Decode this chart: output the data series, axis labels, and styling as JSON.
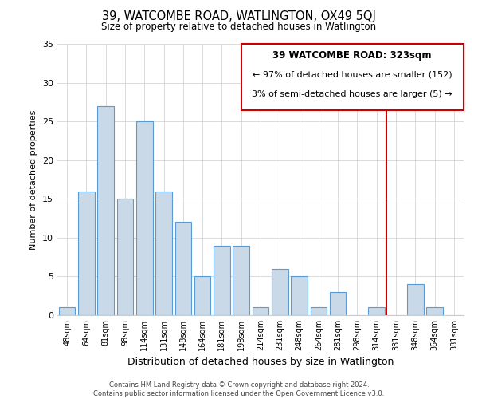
{
  "title": "39, WATCOMBE ROAD, WATLINGTON, OX49 5QJ",
  "subtitle": "Size of property relative to detached houses in Watlington",
  "xlabel": "Distribution of detached houses by size in Watlington",
  "ylabel": "Number of detached properties",
  "bar_labels": [
    "48sqm",
    "64sqm",
    "81sqm",
    "98sqm",
    "114sqm",
    "131sqm",
    "148sqm",
    "164sqm",
    "181sqm",
    "198sqm",
    "214sqm",
    "231sqm",
    "248sqm",
    "264sqm",
    "281sqm",
    "298sqm",
    "314sqm",
    "331sqm",
    "348sqm",
    "364sqm",
    "381sqm"
  ],
  "bar_values": [
    1,
    16,
    27,
    15,
    25,
    16,
    12,
    5,
    9,
    9,
    1,
    6,
    5,
    1,
    3,
    0,
    1,
    0,
    4,
    1,
    0
  ],
  "bar_color": "#c9d9e8",
  "bar_edge_color": "#5b9bd5",
  "ylim": [
    0,
    35
  ],
  "yticks": [
    0,
    5,
    10,
    15,
    20,
    25,
    30,
    35
  ],
  "vline_index": 16,
  "vline_color": "#cc0000",
  "annotation_title": "39 WATCOMBE ROAD: 323sqm",
  "annotation_line1": "← 97% of detached houses are smaller (152)",
  "annotation_line2": "3% of semi-detached houses are larger (5) →",
  "annotation_box_color": "#cc0000",
  "footer_line1": "Contains HM Land Registry data © Crown copyright and database right 2024.",
  "footer_line2": "Contains public sector information licensed under the Open Government Licence v3.0.",
  "background_color": "#ffffff",
  "grid_color": "#cccccc"
}
